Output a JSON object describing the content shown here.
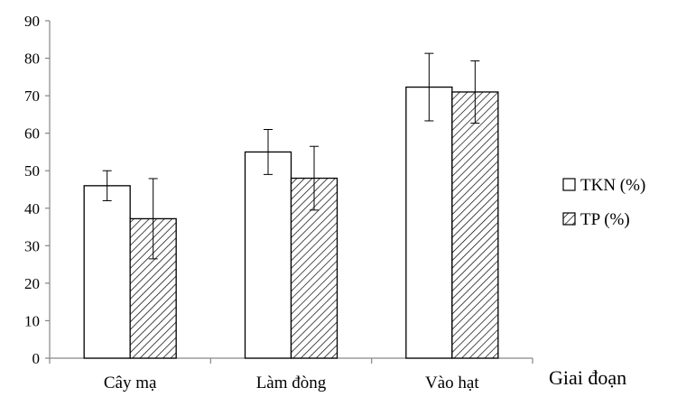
{
  "chart_data": {
    "type": "bar",
    "categories": [
      "Cây mạ",
      "Làm đòng",
      "Vào hạt"
    ],
    "series": [
      {
        "name": "TKN (%)",
        "values": [
          46,
          55,
          72.3
        ],
        "error": [
          4,
          6,
          9
        ],
        "pattern": "solid",
        "fill": "#ffffff"
      },
      {
        "name": "TP (%)",
        "values": [
          37.2,
          48,
          71
        ],
        "error": [
          10.7,
          8.5,
          8.3
        ],
        "pattern": "hatch",
        "fill": "#ffffff"
      }
    ],
    "title": "",
    "xlabel": "Giai đoạn",
    "ylabel": "",
    "ylim": [
      0,
      90
    ],
    "yticks": [
      "0",
      "10",
      "20",
      "30",
      "40",
      "50",
      "60",
      "70",
      "80",
      "90"
    ],
    "grid": false,
    "legend_position": "right"
  },
  "colors": {
    "axis": "#868686",
    "bar_stroke": "#000000",
    "hatch": "#000000"
  }
}
